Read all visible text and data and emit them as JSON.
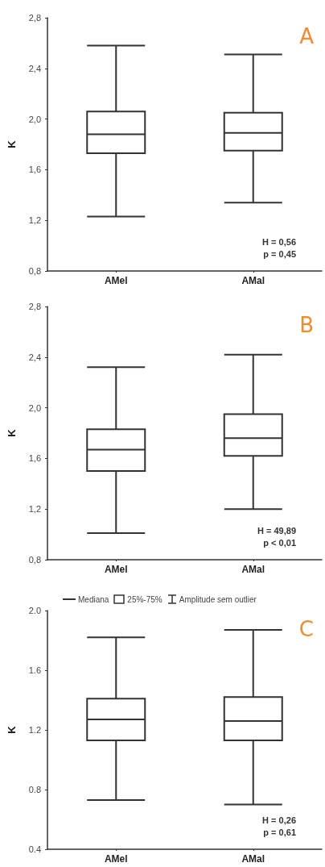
{
  "chart_data": [
    {
      "type": "box",
      "ylabel": "K",
      "categories": [
        "AMel",
        "AMal"
      ],
      "color": "#333333",
      "boxes": [
        {
          "low": 1.23,
          "q1": 1.73,
          "median": 1.88,
          "q3": 2.06,
          "high": 2.58
        },
        {
          "low": 1.34,
          "q1": 1.75,
          "median": 1.89,
          "q3": 2.05,
          "high": 2.51
        }
      ],
      "ylim": [
        0.8,
        2.8
      ],
      "yticks": [
        {
          "value": 0.8,
          "label": "0,8"
        },
        {
          "value": 1.2,
          "label": "1,2"
        },
        {
          "value": 1.6,
          "label": "1,6"
        },
        {
          "value": 2.0,
          "label": "2,0"
        },
        {
          "value": 2.4,
          "label": "2,4"
        },
        {
          "value": 2.8,
          "label": "2,8"
        }
      ],
      "grid": false,
      "annotations": [
        "A",
        "H = 0,56",
        "p = 0,45"
      ]
    },
    {
      "type": "box",
      "ylabel": "K",
      "categories": [
        "AMel",
        "AMal"
      ],
      "color": "#333333",
      "boxes": [
        {
          "low": 1.01,
          "q1": 1.5,
          "median": 1.67,
          "q3": 1.83,
          "high": 2.32
        },
        {
          "low": 1.2,
          "q1": 1.62,
          "median": 1.76,
          "q3": 1.95,
          "high": 2.42
        }
      ],
      "ylim": [
        0.8,
        2.8
      ],
      "yticks": [
        {
          "value": 0.8,
          "label": "0,8"
        },
        {
          "value": 1.2,
          "label": "1,2"
        },
        {
          "value": 1.6,
          "label": "1,6"
        },
        {
          "value": 2.0,
          "label": "2,0"
        },
        {
          "value": 2.4,
          "label": "2,4"
        },
        {
          "value": 2.8,
          "label": "2,8"
        }
      ],
      "grid": false,
      "annotations": [
        "B",
        "H = 49,89",
        "p < 0,01"
      ]
    },
    {
      "type": "box",
      "ylabel": "K",
      "categories": [
        "AMel",
        "AMal"
      ],
      "color": "#333333",
      "boxes": [
        {
          "low": 0.73,
          "q1": 1.13,
          "median": 1.27,
          "q3": 1.41,
          "high": 1.82
        },
        {
          "low": 0.7,
          "q1": 1.13,
          "median": 1.26,
          "q3": 1.42,
          "high": 1.87
        }
      ],
      "ylim": [
        0.4,
        2.0
      ],
      "yticks": [
        {
          "value": 0.4,
          "label": "0.4"
        },
        {
          "value": 0.8,
          "label": "0.8"
        },
        {
          "value": 1.2,
          "label": "1.2"
        },
        {
          "value": 1.6,
          "label": "1.6"
        },
        {
          "value": 2.0,
          "label": "2.0"
        }
      ],
      "grid": false,
      "annotations": [
        "C",
        "H = 0,26",
        "p = 0,61",
        "Mediana",
        "25%-75%",
        "Amplitude sem outlier"
      ]
    }
  ]
}
